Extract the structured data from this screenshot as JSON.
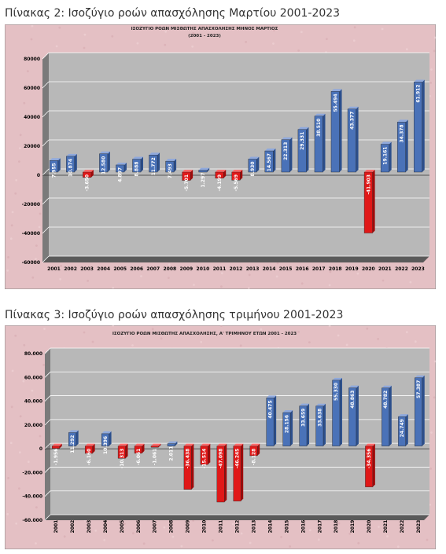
{
  "captions": {
    "chart1": "Πίνακας 2: Ισοζύγιο ροών απασχόλησης Μαρτίου 2001-2023",
    "chart2": "Πίνακας 3: Ισοζύγιο ροών απασχόλησης τριμήνου 2001-2023"
  },
  "colors": {
    "panel_bg": "#e4c0c4",
    "plot_bg": "#b8b8b8",
    "positive": "#4a72b8",
    "negative": "#e01818",
    "grid": "#ffffff"
  },
  "chart_data": [
    {
      "type": "bar",
      "title": "ΙΣΟΖΥΓΙΟ ΡΟΩΝ ΜΙΣΘΩΤΗΣ ΑΠΑΣΧΟΛΗΣΗΣ ΜΗΝΟΣ ΜΑΡΤΙΟΣ",
      "subtitle": "(2001 - 2023)",
      "categories": [
        "2001",
        "2002",
        "2003",
        "2004",
        "2005",
        "2006",
        "2007",
        "2008",
        "2009",
        "2010",
        "2011",
        "2012",
        "2013",
        "2014",
        "2015",
        "2016",
        "2017",
        "2018",
        "2019",
        "2020",
        "2021",
        "2022",
        "2023"
      ],
      "values": [
        7955,
        10874,
        -3650,
        12580,
        4897,
        8888,
        11772,
        7493,
        -5701,
        1297,
        -4199,
        -5569,
        8930,
        14567,
        22313,
        29331,
        38510,
        55494,
        43377,
        -41903,
        19161,
        34378,
        61912
      ],
      "value_labels": [
        "7.955",
        "10.874",
        "-3.650",
        "12.580",
        "4.897",
        "8.888",
        "11.772",
        "7.493",
        "-5.701",
        "1.297",
        "-4.199",
        "-5.569",
        "8.930",
        "14.567",
        "22.313",
        "29.331",
        "38.510",
        "55.494",
        "43.377",
        "-41.903",
        "19.161",
        "34.378",
        "61.912"
      ],
      "ylim": [
        -60000,
        80000
      ],
      "yticks": [
        "80000",
        "60000",
        "40000",
        "20000",
        "0",
        "-20000",
        "-40000",
        "-60000"
      ],
      "grid": true
    },
    {
      "type": "bar",
      "title": "ΙΣΟΖΥΓΙΟ ΡΟΩΝ ΜΙΣΘΩΤΗΣ ΑΠΑΣΧΟΛΗΣΗΣ, Α' ΤΡΙΜΗΝΟΥ ΕΤΩΝ 2001 - 2023",
      "categories": [
        "2001",
        "2002",
        "2003",
        "2004",
        "2005",
        "2006",
        "2007",
        "2008",
        "2009",
        "2010",
        "2011",
        "2012",
        "2013",
        "2014",
        "2015",
        "2016",
        "2017",
        "2018",
        "2019",
        "2020",
        "2021",
        "2022",
        "2023"
      ],
      "values": [
        -1956,
        11292,
        -6160,
        10396,
        -10313,
        -6061,
        -1061,
        2011,
        -36438,
        -15514,
        -47098,
        -46245,
        -8128,
        40475,
        28156,
        33659,
        33638,
        55330,
        48863,
        -34356,
        48782,
        24749,
        57387
      ],
      "value_labels": [
        "-1.956",
        "11.292",
        "-6.160",
        "10.396",
        "-10.313",
        "-6.061",
        "-1.061",
        "2.011",
        "-36.438",
        "-15.514",
        "-47.098",
        "-46.245",
        "-8.128",
        "40.475",
        "28.156",
        "33.659",
        "33.638",
        "55.330",
        "48.863",
        "-34.356",
        "48.782",
        "24.749",
        "57.387"
      ],
      "ylim": [
        -60000,
        80000
      ],
      "yticks": [
        "80.000",
        "60.000",
        "40.000",
        "20.000",
        "0",
        "-20.000",
        "-40.000",
        "-60.000"
      ],
      "grid": true
    }
  ]
}
